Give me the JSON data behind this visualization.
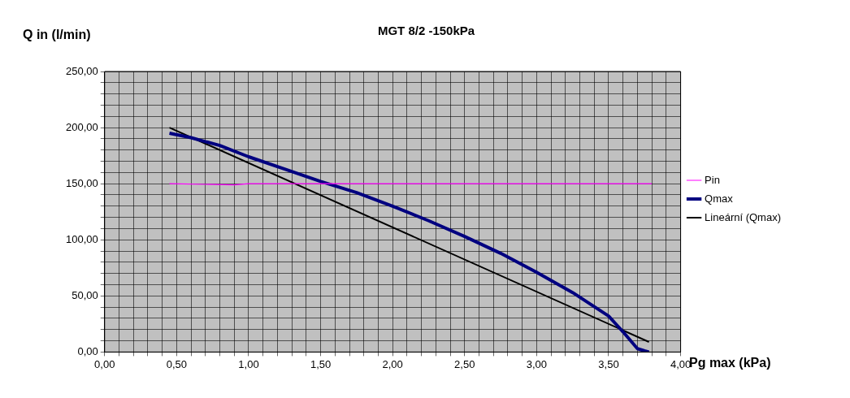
{
  "chart_data": {
    "type": "line",
    "title": "MGT 8/2 -150kPa",
    "xlabel": "Pg max (kPa)",
    "ylabel": "Q in (l/min)",
    "series": [
      {
        "name": "Pin",
        "color": "#ff00ff",
        "x": [
          0.45,
          0.9,
          1.0,
          3.8
        ],
        "values": [
          150,
          149,
          150,
          150
        ]
      },
      {
        "name": "Qmax",
        "color": "#000080",
        "x": [
          0.45,
          0.6,
          0.8,
          1.0,
          1.25,
          1.5,
          1.75,
          2.0,
          2.25,
          2.5,
          2.75,
          3.0,
          3.25,
          3.5,
          3.6,
          3.7,
          3.75,
          3.78
        ],
        "values": [
          195,
          191,
          184,
          174,
          163,
          152,
          142,
          130,
          117,
          103,
          88,
          71,
          53,
          32,
          18,
          3,
          1,
          0
        ]
      },
      {
        "name": "Lineární (Qmax)",
        "color": "#000000",
        "x": [
          0.45,
          3.78
        ],
        "values": [
          200,
          9
        ]
      }
    ],
    "xlim": [
      0,
      4
    ],
    "xticks": [
      {
        "value": 0,
        "label": "0,00"
      },
      {
        "value": 0.1,
        "label": null
      },
      {
        "value": 0.2,
        "label": null
      },
      {
        "value": 0.3,
        "label": null
      },
      {
        "value": 0.4,
        "label": null
      },
      {
        "value": 0.5,
        "label": "0,50"
      },
      {
        "value": 0.6,
        "label": null
      },
      {
        "value": 0.7,
        "label": null
      },
      {
        "value": 0.8,
        "label": null
      },
      {
        "value": 0.9,
        "label": null
      },
      {
        "value": 1,
        "label": "1,00"
      },
      {
        "value": 1.1,
        "label": null
      },
      {
        "value": 1.2,
        "label": null
      },
      {
        "value": 1.3,
        "label": null
      },
      {
        "value": 1.4,
        "label": null
      },
      {
        "value": 1.5,
        "label": "1,50"
      },
      {
        "value": 1.6,
        "label": null
      },
      {
        "value": 1.7,
        "label": null
      },
      {
        "value": 1.8,
        "label": null
      },
      {
        "value": 1.9,
        "label": null
      },
      {
        "value": 2,
        "label": "2,00"
      },
      {
        "value": 2.1,
        "label": null
      },
      {
        "value": 2.2,
        "label": null
      },
      {
        "value": 2.3,
        "label": null
      },
      {
        "value": 2.4,
        "label": null
      },
      {
        "value": 2.5,
        "label": "2,50"
      },
      {
        "value": 2.6,
        "label": null
      },
      {
        "value": 2.7,
        "label": null
      },
      {
        "value": 2.8,
        "label": null
      },
      {
        "value": 2.9,
        "label": null
      },
      {
        "value": 3,
        "label": "3,00"
      },
      {
        "value": 3.1,
        "label": null
      },
      {
        "value": 3.2,
        "label": null
      },
      {
        "value": 3.3,
        "label": null
      },
      {
        "value": 3.4,
        "label": null
      },
      {
        "value": 3.5,
        "label": "3,50"
      },
      {
        "value": 3.6,
        "label": null
      },
      {
        "value": 3.7,
        "label": null
      },
      {
        "value": 3.8,
        "label": null
      },
      {
        "value": 3.9,
        "label": null
      },
      {
        "value": 4,
        "label": "4,00"
      }
    ],
    "ylim": [
      0,
      250
    ],
    "yticks": [
      {
        "value": 0,
        "label": "0,00"
      },
      {
        "value": 10,
        "label": null
      },
      {
        "value": 20,
        "label": null
      },
      {
        "value": 30,
        "label": null
      },
      {
        "value": 40,
        "label": null
      },
      {
        "value": 50,
        "label": "50,00"
      },
      {
        "value": 60,
        "label": null
      },
      {
        "value": 70,
        "label": null
      },
      {
        "value": 80,
        "label": null
      },
      {
        "value": 90,
        "label": null
      },
      {
        "value": 100,
        "label": "100,00"
      },
      {
        "value": 110,
        "label": null
      },
      {
        "value": 120,
        "label": null
      },
      {
        "value": 130,
        "label": null
      },
      {
        "value": 140,
        "label": null
      },
      {
        "value": 150,
        "label": "150,00"
      },
      {
        "value": 160,
        "label": null
      },
      {
        "value": 170,
        "label": null
      },
      {
        "value": 180,
        "label": null
      },
      {
        "value": 190,
        "label": null
      },
      {
        "value": 200,
        "label": "200,00"
      },
      {
        "value": 210,
        "label": null
      },
      {
        "value": 220,
        "label": null
      },
      {
        "value": 230,
        "label": null
      },
      {
        "value": 240,
        "label": null
      },
      {
        "value": 250,
        "label": "250,00"
      }
    ],
    "grid": true,
    "legend": "right",
    "marker": "none",
    "line_style": "solid"
  }
}
